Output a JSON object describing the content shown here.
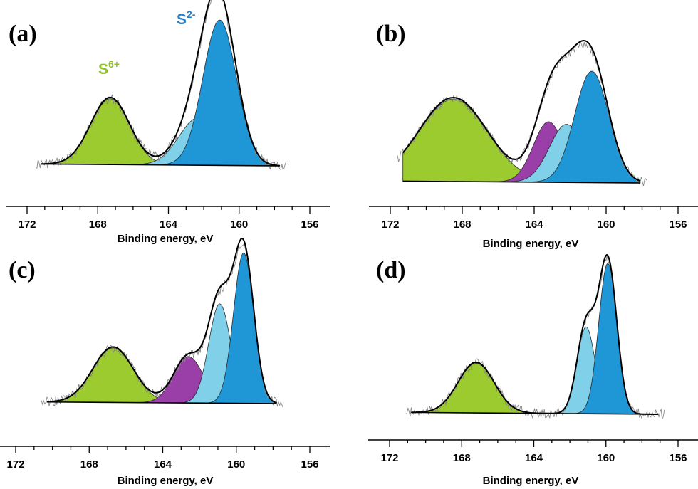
{
  "figure": {
    "colors": {
      "S6+": "#9bcb2f",
      "S2- main": "#1f96d6",
      "S2- secondary": "#7fd0e8",
      "intermediate": "#9b3fa8",
      "envelope": "#000000",
      "raw data": "#888888"
    },
    "annotations": {
      "s6": "S6+",
      "s2": "S2-"
    }
  },
  "chart_data": [
    {
      "panel": "(a)",
      "type": "area",
      "xlabel": "Binding energy, eV",
      "xlim": [
        172,
        156
      ],
      "x_reversed": true,
      "xticks": [
        172,
        168,
        164,
        160,
        156
      ],
      "series": [
        {
          "name": "S6+",
          "center": 167.3,
          "width": 1.1,
          "height": 0.43,
          "color": "#9bcb2f"
        },
        {
          "center": 162.3,
          "width": 1.1,
          "height": 0.31,
          "color": "#7fd0e8"
        },
        {
          "name": "S2-",
          "center": 161.1,
          "width": 0.95,
          "height": 0.95,
          "color": "#1f96d6"
        }
      ]
    },
    {
      "panel": "(b)",
      "type": "area",
      "xlabel": "Binding energy, eV",
      "xlim": [
        172,
        156
      ],
      "x_reversed": true,
      "xticks": [
        172,
        168,
        164,
        160,
        156
      ],
      "series": [
        {
          "center": 168.5,
          "width": 1.9,
          "height": 0.68,
          "color": "#9bcb2f"
        },
        {
          "center": 163.2,
          "width": 0.85,
          "height": 0.5,
          "color": "#9b3fa8"
        },
        {
          "center": 162.2,
          "width": 0.95,
          "height": 0.48,
          "color": "#7fd0e8"
        },
        {
          "center": 160.8,
          "width": 0.95,
          "height": 0.92,
          "color": "#1f96d6"
        }
      ]
    },
    {
      "panel": "(c)",
      "type": "area",
      "xlabel": "Binding energy, eV",
      "xlim": [
        172,
        156
      ],
      "x_reversed": true,
      "xticks": [
        172,
        168,
        164,
        160,
        156
      ],
      "series": [
        {
          "center": 166.7,
          "width": 1.1,
          "height": 0.34,
          "color": "#9bcb2f"
        },
        {
          "center": 162.6,
          "width": 0.8,
          "height": 0.29,
          "color": "#9b3fa8"
        },
        {
          "center": 160.9,
          "width": 0.6,
          "height": 0.62,
          "color": "#7fd0e8"
        },
        {
          "center": 159.6,
          "width": 0.55,
          "height": 0.94,
          "color": "#1f96d6"
        }
      ]
    },
    {
      "panel": "(d)",
      "type": "area",
      "xlabel": "Binding energy, eV",
      "xlim": [
        172,
        156
      ],
      "x_reversed": true,
      "xticks": [
        172,
        168,
        164,
        160,
        156
      ],
      "series": [
        {
          "center": 167.2,
          "width": 1.0,
          "height": 0.32,
          "color": "#9bcb2f"
        },
        {
          "center": 161.1,
          "width": 0.5,
          "height": 0.56,
          "color": "#7fd0e8"
        },
        {
          "center": 159.9,
          "width": 0.5,
          "height": 0.97,
          "color": "#1f96d6"
        }
      ]
    }
  ]
}
